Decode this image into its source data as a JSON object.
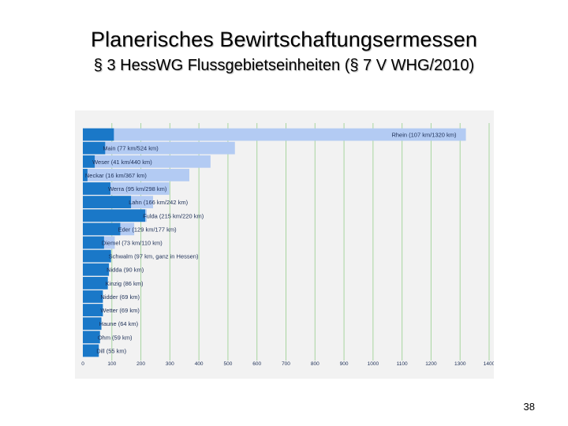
{
  "slide": {
    "title": "Planerisches Bewirtschaftungsermessen",
    "subtitle": "§ 3 HessWG Flussgebietseinheiten (§ 7 V WHG/2010)",
    "page_number": "38"
  },
  "chart_data": {
    "type": "bar",
    "orientation": "horizontal",
    "categories": [
      "Rhein",
      "Main",
      "Weser",
      "Neckar",
      "Werra",
      "Lahn",
      "Fulda",
      "Eder",
      "Diemel",
      "Schwalm",
      "Nidda",
      "Kinzig",
      "Nidder",
      "Wetter",
      "Haune",
      "Ohm",
      "Dill"
    ],
    "labels": [
      "Rhein (107 km/1320 km)",
      "Main (77 km/524 km)",
      "Weser (41 km/440 km)",
      "Neckar (16 km/367 km)",
      "Werra (95 km/298 km)",
      "Lahn (166 km/242 km)",
      "Fulda (215 km/220 km)",
      "Eder (129 km/177 km)",
      "Diemel (73 km/110 km)",
      "Schwalm (97 km, ganz in Hessen)",
      "Nidda (90 km)",
      "Kinzig (86 km)",
      "Nidder (69 km)",
      "Wetter (69 km)",
      "Haune (64 km)",
      "Ohm (59 km)",
      "Dill (55 km)"
    ],
    "series": [
      {
        "values": [
          107,
          77,
          41,
          16,
          95,
          166,
          215,
          129,
          73,
          97,
          90,
          86,
          69,
          69,
          64,
          59,
          55
        ]
      },
      {
        "values": [
          1320,
          524,
          440,
          367,
          298,
          242,
          220,
          177,
          110,
          97,
          90,
          86,
          69,
          69,
          64,
          59,
          55
        ]
      }
    ],
    "x_ticks": [
      0,
      100,
      200,
      300,
      400,
      500,
      600,
      700,
      800,
      900,
      1000,
      1100,
      1200,
      1300,
      1400
    ],
    "xlim": [
      0,
      1400
    ],
    "grid": "vertical",
    "colors": {
      "background": "#f2f2f2",
      "grid": "#a8d5a0",
      "inner": "#1a78c8",
      "total": "#b3cbf3"
    }
  }
}
